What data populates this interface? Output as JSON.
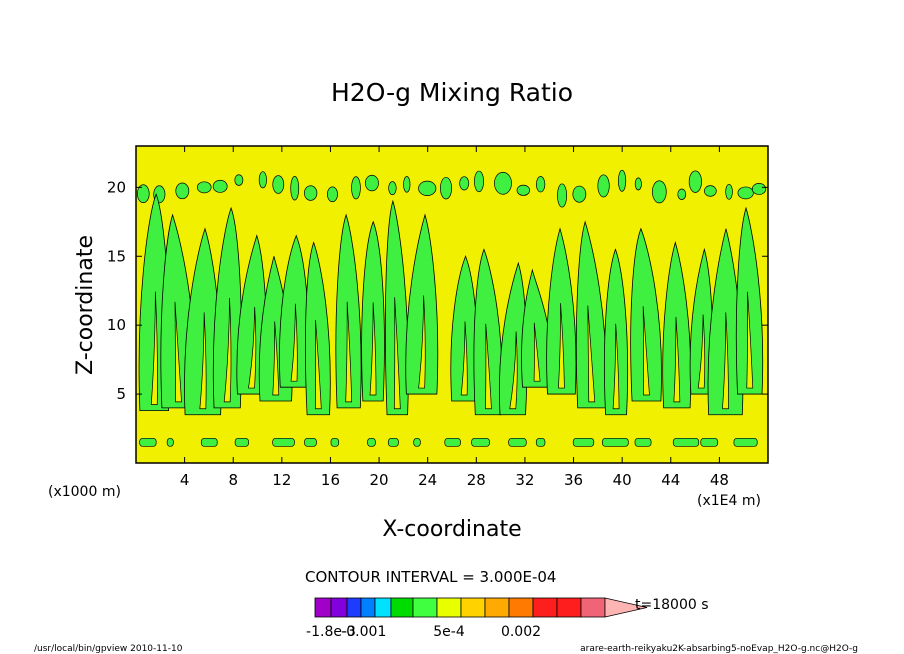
{
  "chart_data": {
    "type": "contour",
    "title": "H2O-g Mixing Ratio",
    "xlabel": "X-coordinate",
    "ylabel": "Z-coordinate",
    "x_unit_left": "(x1000 m)",
    "x_unit_right": "(x1E4 m)",
    "xlim": [
      0,
      52
    ],
    "ylim": [
      0,
      23
    ],
    "x_ticks": [
      4,
      8,
      12,
      16,
      20,
      24,
      28,
      32,
      36,
      40,
      44,
      48
    ],
    "y_ticks": [
      5,
      10,
      15,
      20
    ],
    "contour_interval_text": "CONTOUR INTERVAL = 3.000E-04",
    "time_label": "t=18000 s",
    "colorbar": {
      "colors": [
        "#a000c8",
        "#8200dc",
        "#1e3cff",
        "#0080ff",
        "#00e0ff",
        "#00dc00",
        "#40ff40",
        "#e8ff00",
        "#ffd200",
        "#ffaa00",
        "#ff7a00",
        "#ff1e1e",
        "#ff1e1e",
        "#f06478",
        "#ffb4b4"
      ],
      "labels": [
        "-1.8e-3",
        "-0.001",
        "5e-4",
        "0.002"
      ],
      "label_positions_index": [
        1.0,
        3.2,
        7.5,
        10.5
      ]
    },
    "field_colors": {
      "background": "#f0f000",
      "low_band": "#40f040",
      "line": "#000000"
    },
    "plumes": [
      {
        "x": 1.5,
        "z_bot": 3.8,
        "z_top": 19.5
      },
      {
        "x": 3.5,
        "z_bot": 4.0,
        "z_top": 18.0
      },
      {
        "x": 5.5,
        "z_bot": 3.5,
        "z_top": 17.0
      },
      {
        "x": 7.5,
        "z_bot": 4.0,
        "z_top": 18.5
      },
      {
        "x": 9.5,
        "z_bot": 5.0,
        "z_top": 16.5
      },
      {
        "x": 11.5,
        "z_bot": 4.5,
        "z_top": 15.0
      },
      {
        "x": 13.0,
        "z_bot": 5.5,
        "z_top": 16.5
      },
      {
        "x": 15.0,
        "z_bot": 3.5,
        "z_top": 16.0
      },
      {
        "x": 17.5,
        "z_bot": 4.0,
        "z_top": 18.0
      },
      {
        "x": 19.5,
        "z_bot": 4.5,
        "z_top": 17.5
      },
      {
        "x": 21.5,
        "z_bot": 3.5,
        "z_top": 19.0
      },
      {
        "x": 23.5,
        "z_bot": 5.0,
        "z_top": 18.0
      },
      {
        "x": 27.0,
        "z_bot": 4.5,
        "z_top": 15.0
      },
      {
        "x": 29.0,
        "z_bot": 3.5,
        "z_top": 15.5
      },
      {
        "x": 31.0,
        "z_bot": 3.5,
        "z_top": 14.5
      },
      {
        "x": 33.0,
        "z_bot": 5.5,
        "z_top": 14.0
      },
      {
        "x": 35.0,
        "z_bot": 5.0,
        "z_top": 17.0
      },
      {
        "x": 37.5,
        "z_bot": 4.0,
        "z_top": 17.5
      },
      {
        "x": 39.5,
        "z_bot": 3.5,
        "z_top": 15.5
      },
      {
        "x": 42.0,
        "z_bot": 4.5,
        "z_top": 17.0
      },
      {
        "x": 44.5,
        "z_bot": 4.0,
        "z_top": 16.0
      },
      {
        "x": 46.5,
        "z_bot": 5.0,
        "z_top": 15.5
      },
      {
        "x": 48.5,
        "z_bot": 3.5,
        "z_top": 17.0
      },
      {
        "x": 50.5,
        "z_bot": 5.0,
        "z_top": 18.5
      }
    ],
    "tropopause_band_z": 20.0,
    "boundary_band_z": 1.5
  },
  "footer": {
    "left": "/usr/local/bin/gpview  2010-11-10",
    "right": "arare-earth-reikyaku2K-absarbing5-noEvap_H2O-g.nc@H2O-g"
  }
}
